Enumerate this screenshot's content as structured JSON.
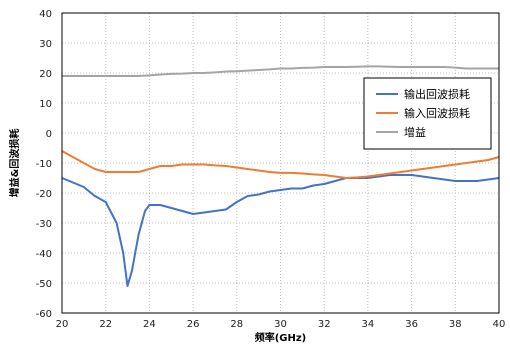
{
  "chart_data": {
    "type": "line",
    "xlabel": "频率(GHz)",
    "ylabel": "增益&回波损耗",
    "xlim": [
      20,
      40
    ],
    "ylim": [
      -60,
      40
    ],
    "xticks": [
      20,
      22,
      24,
      26,
      28,
      30,
      32,
      34,
      36,
      38,
      40
    ],
    "yticks": [
      40,
      30,
      20,
      10,
      0,
      -10,
      -20,
      -30,
      -40,
      -50,
      -60
    ],
    "grid": "dashed",
    "legend_position": "right",
    "series": [
      {
        "name": "输出回波损耗",
        "color": "#4472C4",
        "points": [
          [
            20,
            -15
          ],
          [
            20.5,
            -16.5
          ],
          [
            21,
            -18
          ],
          [
            21.5,
            -21
          ],
          [
            22,
            -23
          ],
          [
            22.5,
            -30
          ],
          [
            22.8,
            -40
          ],
          [
            23,
            -51
          ],
          [
            23.2,
            -46
          ],
          [
            23.5,
            -34
          ],
          [
            23.8,
            -26
          ],
          [
            24,
            -24
          ],
          [
            24.5,
            -24
          ],
          [
            25,
            -25
          ],
          [
            25.5,
            -26
          ],
          [
            26,
            -27
          ],
          [
            26.5,
            -26.5
          ],
          [
            27,
            -26
          ],
          [
            27.5,
            -25.5
          ],
          [
            28,
            -23
          ],
          [
            28.5,
            -21
          ],
          [
            29,
            -20.5
          ],
          [
            29.5,
            -19.5
          ],
          [
            30,
            -19
          ],
          [
            30.5,
            -18.5
          ],
          [
            31,
            -18.5
          ],
          [
            31.5,
            -17.5
          ],
          [
            32,
            -17
          ],
          [
            32.5,
            -16
          ],
          [
            33,
            -15
          ],
          [
            33.5,
            -15
          ],
          [
            34,
            -15
          ],
          [
            34.5,
            -14.5
          ],
          [
            35,
            -14
          ],
          [
            35.5,
            -14
          ],
          [
            36,
            -14
          ],
          [
            36.5,
            -14.5
          ],
          [
            37,
            -15
          ],
          [
            37.5,
            -15.5
          ],
          [
            38,
            -16
          ],
          [
            38.5,
            -16
          ],
          [
            39,
            -16
          ],
          [
            39.5,
            -15.5
          ],
          [
            40,
            -15
          ]
        ]
      },
      {
        "name": "输入回波损耗",
        "color": "#ED7D31",
        "points": [
          [
            20,
            -6
          ],
          [
            20.5,
            -8
          ],
          [
            21,
            -10
          ],
          [
            21.5,
            -12
          ],
          [
            22,
            -13
          ],
          [
            22.5,
            -13
          ],
          [
            23,
            -13
          ],
          [
            23.5,
            -13
          ],
          [
            24,
            -12
          ],
          [
            24.5,
            -11
          ],
          [
            25,
            -11
          ],
          [
            25.5,
            -10.5
          ],
          [
            26,
            -10.5
          ],
          [
            26.5,
            -10.5
          ],
          [
            27,
            -10.8
          ],
          [
            27.5,
            -11
          ],
          [
            28,
            -11.5
          ],
          [
            28.5,
            -12
          ],
          [
            29,
            -12.5
          ],
          [
            29.5,
            -13
          ],
          [
            30,
            -13.3
          ],
          [
            30.5,
            -13.3
          ],
          [
            31,
            -13.5
          ],
          [
            31.5,
            -13.8
          ],
          [
            32,
            -14
          ],
          [
            32.5,
            -14.5
          ],
          [
            33,
            -15
          ],
          [
            33.5,
            -14.8
          ],
          [
            34,
            -14.5
          ],
          [
            34.5,
            -14
          ],
          [
            35,
            -13.5
          ],
          [
            35.5,
            -13
          ],
          [
            36,
            -12.5
          ],
          [
            36.5,
            -12
          ],
          [
            37,
            -11.5
          ],
          [
            37.5,
            -11
          ],
          [
            38,
            -10.5
          ],
          [
            38.5,
            -10
          ],
          [
            39,
            -9.5
          ],
          [
            39.5,
            -9
          ],
          [
            40,
            -8
          ]
        ]
      },
      {
        "name": "增益",
        "color": "#A5A5A5",
        "points": [
          [
            20,
            19
          ],
          [
            20.5,
            19
          ],
          [
            21,
            19
          ],
          [
            21.5,
            19
          ],
          [
            22,
            19
          ],
          [
            22.5,
            19
          ],
          [
            23,
            19
          ],
          [
            23.5,
            19
          ],
          [
            24,
            19.2
          ],
          [
            24.5,
            19.5
          ],
          [
            25,
            19.7
          ],
          [
            25.5,
            19.8
          ],
          [
            26,
            20
          ],
          [
            26.5,
            20
          ],
          [
            27,
            20.2
          ],
          [
            27.5,
            20.5
          ],
          [
            28,
            20.6
          ],
          [
            28.5,
            20.8
          ],
          [
            29,
            21
          ],
          [
            29.5,
            21.2
          ],
          [
            30,
            21.5
          ],
          [
            30.5,
            21.5
          ],
          [
            31,
            21.7
          ],
          [
            31.5,
            21.8
          ],
          [
            32,
            22
          ],
          [
            32.5,
            22
          ],
          [
            33,
            22
          ],
          [
            33.5,
            22.1
          ],
          [
            34,
            22.2
          ],
          [
            34.5,
            22.2
          ],
          [
            35,
            22.1
          ],
          [
            35.5,
            22
          ],
          [
            36,
            22
          ],
          [
            36.5,
            22
          ],
          [
            37,
            22
          ],
          [
            37.5,
            22
          ],
          [
            38,
            21.8
          ],
          [
            38.5,
            21.5
          ],
          [
            39,
            21.5
          ],
          [
            39.5,
            21.5
          ],
          [
            40,
            21.5
          ]
        ]
      }
    ]
  }
}
